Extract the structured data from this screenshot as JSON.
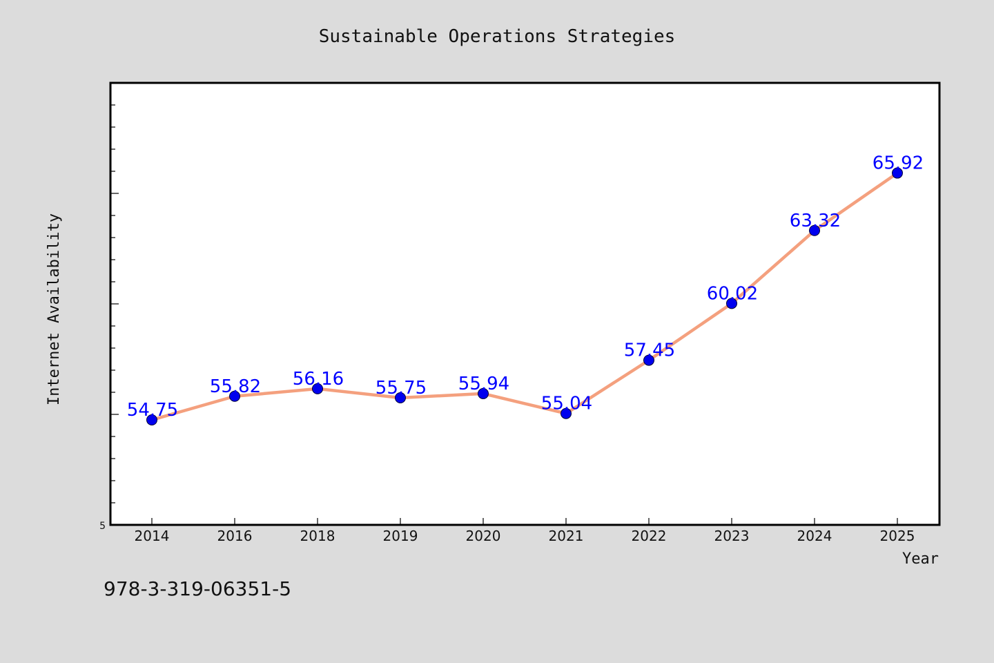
{
  "chart_data": {
    "type": "line",
    "title": "Sustainable Operations Strategies",
    "xlabel": "Year",
    "ylabel": "Internet Availability",
    "categories": [
      "2014",
      "2016",
      "2018",
      "2019",
      "2020",
      "2021",
      "2022",
      "2023",
      "2024",
      "2025"
    ],
    "values": [
      54.75,
      55.82,
      56.16,
      55.75,
      55.94,
      55.04,
      57.45,
      60.02,
      63.32,
      65.92
    ],
    "data_labels": [
      "54.75",
      "55.82",
      "56.16",
      "55.75",
      "55.94",
      "55.04",
      "57.45",
      "60.02",
      "63.32",
      "65.92"
    ],
    "ylim": [
      50,
      70
    ],
    "y_tick_labels": [
      "5"
    ],
    "grid": false,
    "legend": "none",
    "colors": {
      "line": "#f4a07e",
      "marker": "#0000ee",
      "data_label": "#0000ff",
      "plot_background": "#ffffff",
      "page_background": "#dcdcdc",
      "frame": "#000000"
    }
  },
  "footer": {
    "isbn": "978-3-319-06351-5"
  }
}
